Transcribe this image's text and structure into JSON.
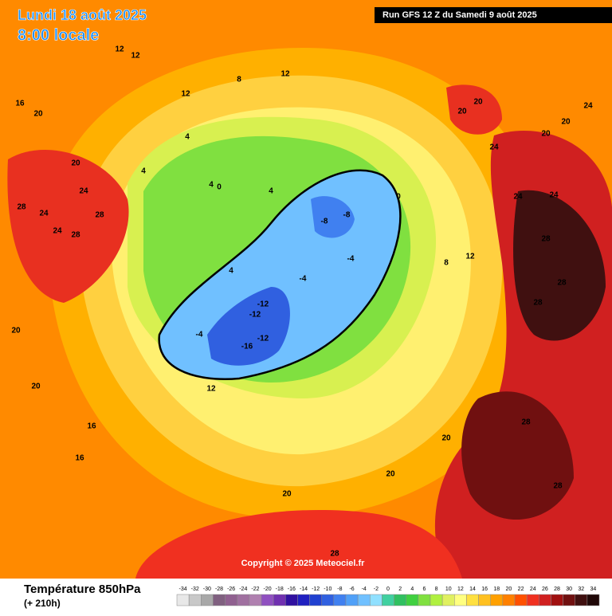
{
  "header": {
    "date": "Lundi 18 août 2025",
    "time": "8:00 locale",
    "run": "Run GFS 12 Z du Samedi 9 août 2025",
    "copyright": "Copyright © 2025 Meteociel.fr"
  },
  "footer": {
    "title": "Température 850hPa",
    "lead": "(+ 210h)"
  },
  "legend": {
    "ticks": [
      -34,
      -32,
      -30,
      -28,
      -26,
      -24,
      -22,
      -20,
      -18,
      -16,
      -14,
      -12,
      -10,
      -8,
      -6,
      -4,
      -2,
      0,
      2,
      4,
      6,
      8,
      10,
      12,
      14,
      16,
      18,
      20,
      22,
      24,
      26,
      28,
      30,
      32,
      34
    ],
    "colors": [
      "#e8e8e8",
      "#c8c8c8",
      "#a8a8a8",
      "#806080",
      "#906090",
      "#a070a0",
      "#b080b0",
      "#9050c0",
      "#7030b0",
      "#3010a0",
      "#2020c0",
      "#2040d0",
      "#3060e0",
      "#4080f0",
      "#50a0f8",
      "#70c0ff",
      "#90e0ff",
      "#40d0a0",
      "#30c060",
      "#40d040",
      "#80e040",
      "#b0f040",
      "#e0f060",
      "#ffff80",
      "#ffe040",
      "#ffc020",
      "#ffa000",
      "#ff8000",
      "#ff5000",
      "#f03020",
      "#d02020",
      "#a01010",
      "#701010",
      "#401010",
      "#200808"
    ]
  },
  "contour_labels": [
    16,
    20,
    20,
    24,
    24,
    28,
    24,
    28,
    28,
    12,
    12,
    12,
    8,
    12,
    4,
    4,
    4,
    0,
    4,
    -8,
    -8,
    -4,
    -4,
    -12,
    -12,
    -16,
    -12,
    -4,
    4,
    0,
    8,
    12,
    24,
    24,
    24,
    28,
    28,
    28,
    28,
    28,
    20,
    28,
    20,
    20,
    16,
    16,
    12,
    20,
    20,
    20,
    20,
    20,
    20,
    24
  ]
}
